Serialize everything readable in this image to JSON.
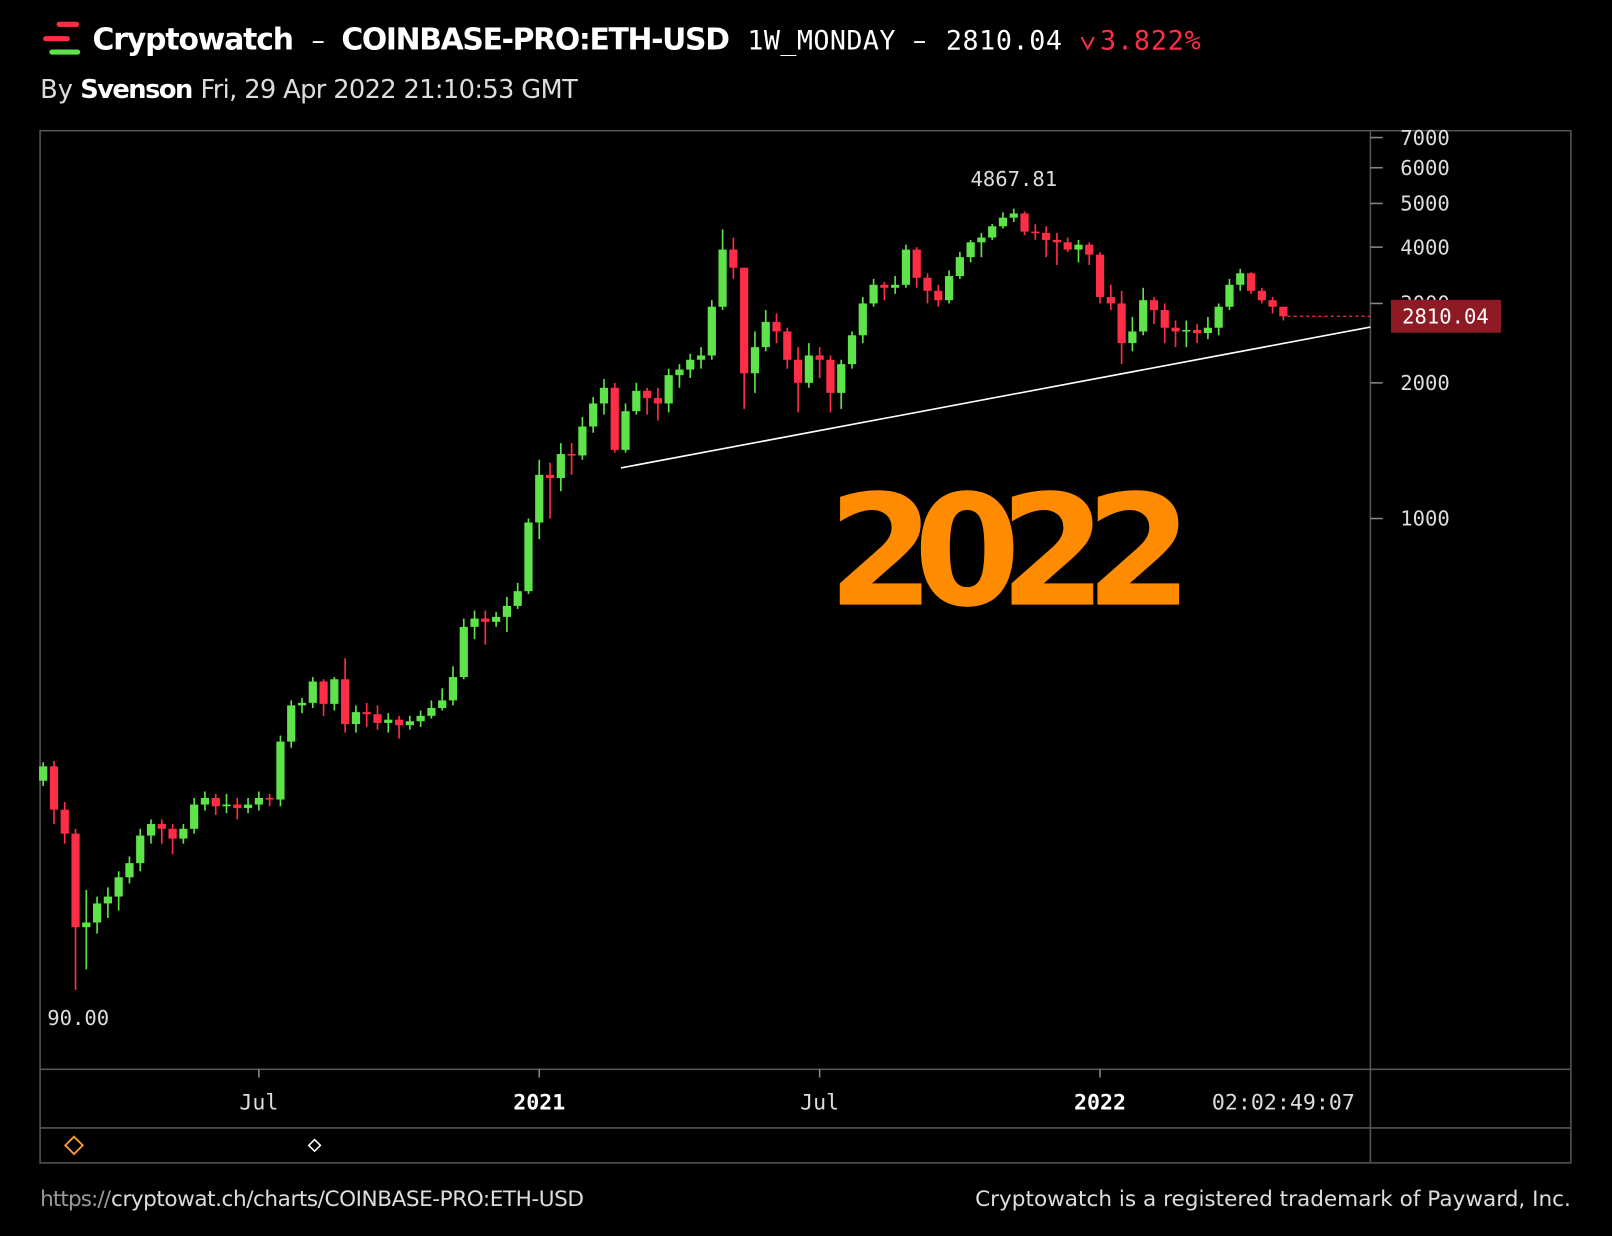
{
  "header": {
    "brand": "Cryptowatch",
    "separator": "–",
    "pair": "COINBASE-PRO:ETH-USD",
    "interval": "1W_MONDAY",
    "change": "3.822%",
    "author_prefix": "By",
    "author": "Svenson",
    "timestamp": "Fri, 29 Apr 2022 21:10:53 GMT"
  },
  "footer": {
    "url_scheme": "https://",
    "url": "cryptowat.ch/charts/COINBASE-PRO:ETH-USD",
    "trademark": "Cryptowatch is a registered trademark of Payward, Inc."
  },
  "chart_data": {
    "type": "candlestick",
    "categories": [
      null,
      null,
      null,
      null,
      null,
      null,
      null,
      null,
      null,
      null,
      null,
      null,
      null,
      null,
      null,
      null,
      null,
      null,
      null,
      null,
      "Jul",
      null,
      null,
      null,
      null,
      null,
      null,
      null,
      null,
      null,
      null,
      null,
      null,
      null,
      null,
      null,
      null,
      null,
      null,
      null,
      null,
      null,
      null,
      null,
      null,
      null,
      "2021",
      null,
      null,
      null,
      null,
      null,
      null,
      null,
      null,
      null,
      null,
      null,
      null,
      null,
      null,
      null,
      null,
      null,
      null,
      null,
      null,
      null,
      null,
      null,
      null,
      null,
      "Jul",
      null,
      null,
      null,
      null,
      null,
      null,
      null,
      null,
      null,
      null,
      null,
      null,
      null,
      null,
      null,
      null,
      null,
      null,
      null,
      null,
      null,
      null,
      null,
      null,
      null,
      "2022",
      null,
      null,
      null,
      null,
      null,
      null,
      null,
      null,
      null,
      null,
      null,
      null,
      null,
      null,
      null,
      null,
      null
    ],
    "open": [
      262,
      282,
      226,
      200,
      124,
      127,
      140,
      145,
      160,
      172,
      198,
      210,
      205,
      195,
      205,
      232,
      240,
      230,
      232,
      228,
      232,
      240,
      238,
      320,
      385,
      390,
      435,
      388,
      440,
      350,
      372,
      368,
      352,
      358,
      348,
      355,
      365,
      380,
      395,
      445,
      575,
      600,
      590,
      605,
      640,
      690,
      980,
      1250,
      1230,
      1390,
      1380,
      1600,
      1800,
      1950,
      1420,
      1730,
      1920,
      1850,
      1800,
      2080,
      2140,
      2250,
      2300,
      2950,
      3950,
      3600,
      2100,
      2400,
      2730,
      2600,
      2250,
      2000,
      2300,
      2250,
      1900,
      2200,
      2550,
      3000,
      3300,
      3250,
      3300,
      3950,
      3420,
      3200,
      3050,
      3450,
      3800,
      4100,
      4200,
      4450,
      4650,
      4750,
      4330,
      4300,
      4150,
      4100,
      3950,
      4050,
      3850,
      3100,
      3000,
      2450,
      2600,
      3050,
      2900,
      2650,
      2600,
      2620,
      2580,
      2650,
      2950,
      3300,
      3500,
      3200,
      3050,
      2950
    ],
    "high": [
      288,
      290,
      235,
      205,
      150,
      145,
      152,
      165,
      178,
      205,
      215,
      215,
      210,
      210,
      240,
      248,
      245,
      245,
      240,
      240,
      248,
      245,
      330,
      395,
      400,
      445,
      440,
      445,
      490,
      385,
      390,
      385,
      370,
      365,
      365,
      375,
      395,
      420,
      470,
      600,
      625,
      625,
      620,
      670,
      720,
      1000,
      1350,
      1330,
      1470,
      1470,
      1680,
      1860,
      2040,
      2000,
      1800,
      2000,
      1950,
      1950,
      2150,
      2200,
      2320,
      2400,
      3050,
      4380,
      4200,
      3600,
      2600,
      2900,
      2850,
      2650,
      2400,
      2450,
      2400,
      2300,
      2250,
      2600,
      3100,
      3400,
      3350,
      3450,
      4050,
      4000,
      3500,
      3300,
      3550,
      3900,
      4150,
      4300,
      4500,
      4780,
      4867.81,
      4800,
      4500,
      4450,
      4300,
      4200,
      4150,
      4100,
      3900,
      3300,
      3200,
      2800,
      3250,
      3100,
      3000,
      2750,
      2750,
      2700,
      2800,
      3000,
      3400,
      3580,
      3520,
      3250,
      3100,
      2950
    ],
    "low": [
      255,
      210,
      190,
      90,
      100,
      120,
      130,
      135,
      155,
      165,
      190,
      190,
      180,
      190,
      200,
      225,
      220,
      222,
      215,
      222,
      225,
      230,
      230,
      310,
      370,
      380,
      365,
      375,
      335,
      335,
      345,
      340,
      335,
      325,
      340,
      345,
      360,
      375,
      385,
      440,
      540,
      525,
      575,
      560,
      630,
      680,
      900,
      1000,
      1150,
      1250,
      1350,
      1550,
      1700,
      1400,
      1400,
      1700,
      1700,
      1650,
      1720,
      1950,
      2050,
      2150,
      2250,
      2900,
      3400,
      1750,
      1900,
      2350,
      2450,
      2150,
      1720,
      1950,
      2050,
      1720,
      1750,
      2150,
      2450,
      2950,
      3050,
      3150,
      3250,
      3250,
      3000,
      2950,
      3000,
      3400,
      3700,
      3800,
      4150,
      4400,
      4550,
      4250,
      4150,
      3800,
      3650,
      3900,
      3700,
      3650,
      3000,
      2900,
      2200,
      2350,
      2550,
      2700,
      2450,
      2400,
      2400,
      2450,
      2500,
      2550,
      2900,
      3200,
      3150,
      3000,
      2850,
      2750
    ],
    "close": [
      282,
      226,
      200,
      124,
      127,
      140,
      145,
      160,
      172,
      198,
      210,
      205,
      195,
      205,
      232,
      240,
      230,
      232,
      228,
      232,
      240,
      238,
      320,
      385,
      390,
      435,
      388,
      440,
      350,
      372,
      368,
      352,
      358,
      348,
      355,
      365,
      380,
      395,
      445,
      575,
      600,
      590,
      605,
      640,
      690,
      980,
      1250,
      1230,
      1390,
      1380,
      1600,
      1800,
      1950,
      1420,
      1730,
      1920,
      1850,
      1800,
      2080,
      2140,
      2250,
      2300,
      2950,
      3950,
      3600,
      2100,
      2400,
      2730,
      2600,
      2250,
      2000,
      2300,
      2250,
      1900,
      2200,
      2550,
      3000,
      3300,
      3250,
      3300,
      3950,
      3420,
      3200,
      3050,
      3450,
      3800,
      4100,
      4200,
      4450,
      4650,
      4750,
      4330,
      4300,
      4150,
      4100,
      3950,
      4050,
      3850,
      3100,
      3000,
      2450,
      2600,
      3050,
      2900,
      2650,
      2600,
      2620,
      2580,
      2650,
      2950,
      3300,
      3500,
      3200,
      3050,
      2950,
      2810.04
    ],
    "up_color": "#5fe34a",
    "down_color": "#ff2d46",
    "ylim": [
      60,
      7250
    ],
    "yticks": [
      1000,
      2000,
      3000,
      4000,
      5000,
      6000,
      7000
    ],
    "log_scale": true,
    "max_label": "4867.81",
    "min_label": "90.00",
    "annotation": "2022",
    "annotation_color": "#ff8c00",
    "countdown": "02:02:49:07"
  }
}
